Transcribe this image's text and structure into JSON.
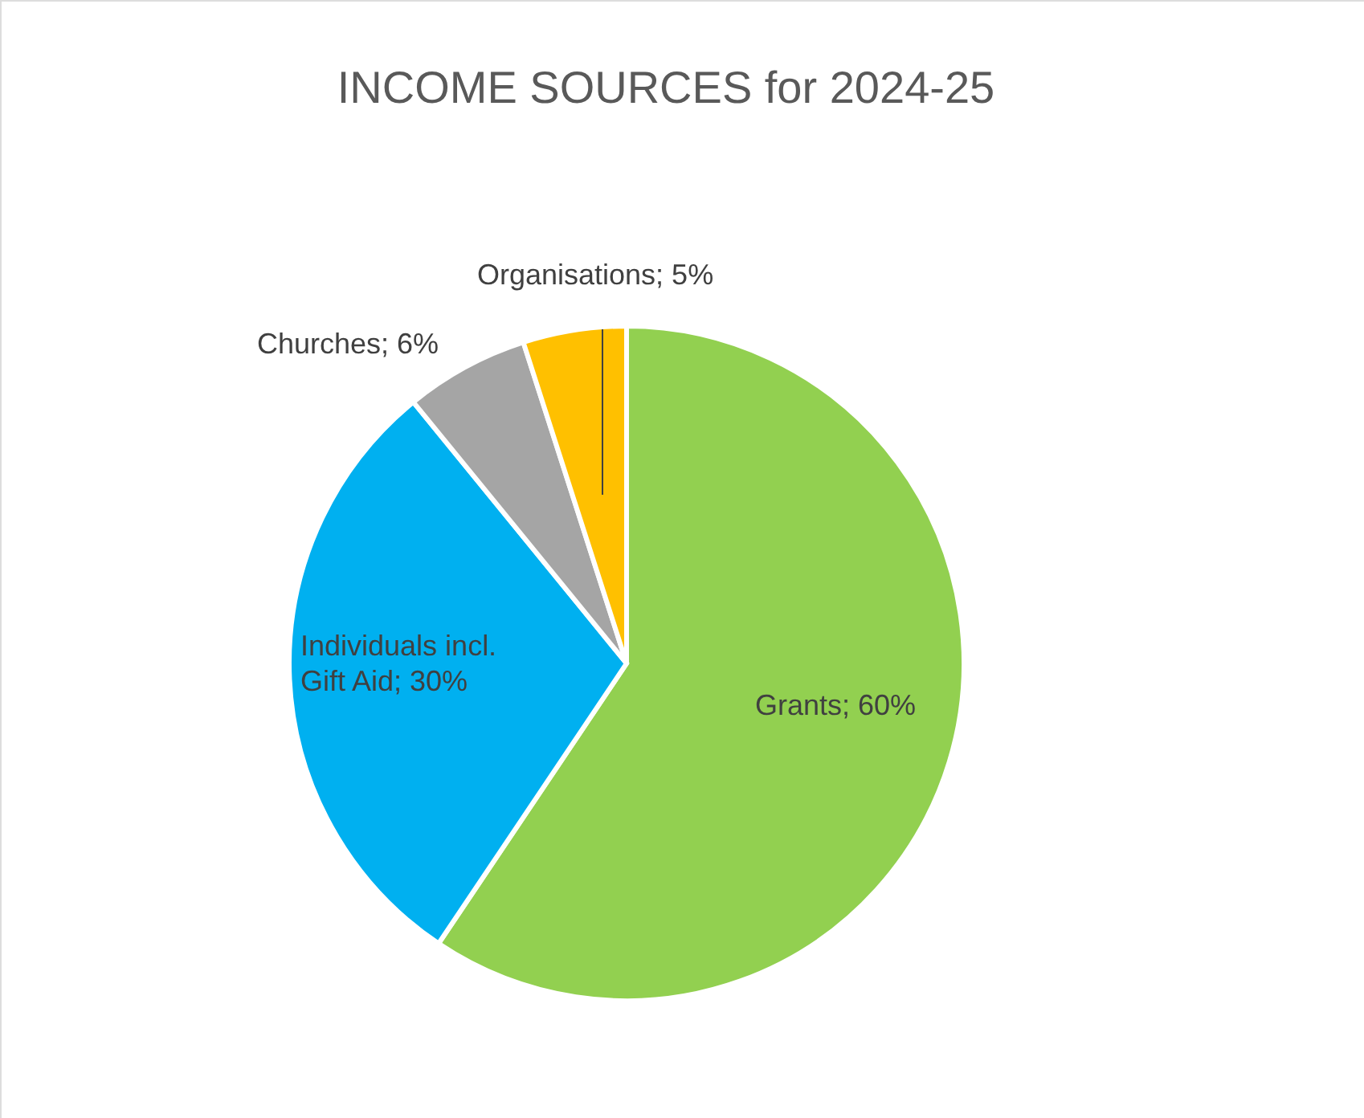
{
  "chart_data": {
    "type": "pie",
    "title": "INCOME SOURCES for 2024-25",
    "categories": [
      "Grants",
      "Individuals incl. Gift Aid",
      "Churches",
      "Organisations"
    ],
    "values": [
      60,
      30,
      6,
      5
    ],
    "value_labels": [
      "60%",
      "30%",
      "6%",
      "5%"
    ],
    "colors": [
      "#92d050",
      "#00b0f0",
      "#a5a5a5",
      "#ffc000"
    ]
  }
}
